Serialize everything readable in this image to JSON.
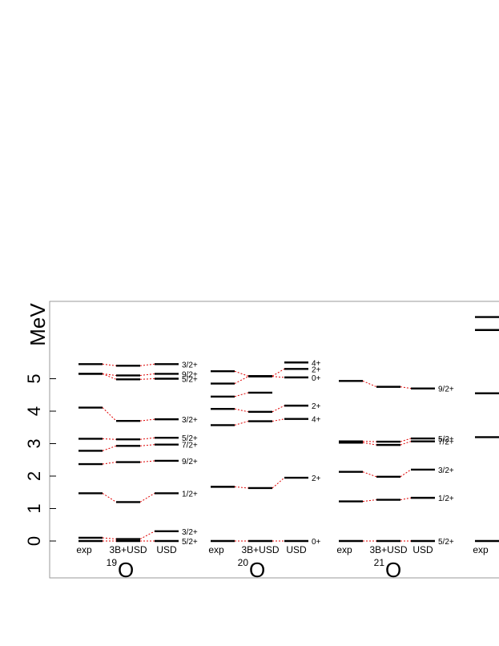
{
  "chart_data": {
    "type": "level-scheme",
    "ylabel": "MeV",
    "ylim": [
      0,
      5.7
    ],
    "yticks": [
      0,
      1,
      2,
      3,
      4,
      5
    ],
    "grid": false,
    "column_labels": [
      "exp",
      "3B+USD",
      "USD"
    ],
    "nuclei": [
      {
        "mass": "19",
        "symbol": "O",
        "levels": [
          {
            "spin": "5/2+",
            "exp": 0.0,
            "3B+USD": 0.0,
            "USD": 0.0
          },
          {
            "spin": "3/2+",
            "exp": 0.1,
            "3B+USD": 0.06,
            "USD": 0.3
          },
          {
            "spin": "1/2+",
            "exp": 1.47,
            "3B+USD": 1.2,
            "USD": 1.47
          },
          {
            "spin": "9/2+",
            "exp": 2.37,
            "3B+USD": 2.43,
            "USD": 2.47
          },
          {
            "spin": "7/2+",
            "exp": 2.78,
            "3B+USD": 2.93,
            "USD": 2.97
          },
          {
            "spin": "5/2+",
            "exp": 3.15,
            "3B+USD": 3.13,
            "USD": 3.18
          },
          {
            "spin": "3/2+",
            "exp": 4.11,
            "3B+USD": 3.7,
            "USD": 3.75
          },
          {
            "spin": "5/2+",
            "exp": 5.15,
            "3B+USD": 4.98,
            "USD": 5.0
          },
          {
            "spin": "9/2+",
            "exp": 5.15,
            "3B+USD": 5.1,
            "USD": 5.15
          },
          {
            "spin": "3/2+",
            "exp": 5.45,
            "3B+USD": 5.4,
            "USD": 5.45
          }
        ]
      },
      {
        "mass": "20",
        "symbol": "O",
        "levels": [
          {
            "spin": "0+",
            "exp": 0.0,
            "3B+USD": 0.0,
            "USD": 0.0
          },
          {
            "spin": "2+",
            "exp": 1.67,
            "3B+USD": 1.63,
            "USD": 1.95
          },
          {
            "spin": "4+",
            "exp": 3.57,
            "3B+USD": 3.69,
            "USD": 3.76
          },
          {
            "spin": "2+",
            "exp": 4.07,
            "3B+USD": 3.98,
            "USD": 4.17
          },
          {
            "spin": "",
            "exp": 4.45,
            "3B+USD": 4.57,
            "USD": null
          },
          {
            "spin": "0+",
            "exp": 4.85,
            "3B+USD": 5.07,
            "USD": 5.04
          },
          {
            "spin": "2+",
            "exp": 5.23,
            "3B+USD": 5.08,
            "USD": 5.3
          },
          {
            "spin": "4+",
            "exp": null,
            "3B+USD": null,
            "USD": 5.5
          }
        ]
      },
      {
        "mass": "21",
        "symbol": "O",
        "levels": [
          {
            "spin": "5/2+",
            "exp": 0.0,
            "3B+USD": 0.0,
            "USD": 0.0
          },
          {
            "spin": "1/2+",
            "exp": 1.22,
            "3B+USD": 1.27,
            "USD": 1.33
          },
          {
            "spin": "3/2+",
            "exp": 2.13,
            "3B+USD": 1.98,
            "USD": 2.2
          },
          {
            "spin": "7/2+",
            "exp": 3.03,
            "3B+USD": 2.96,
            "USD": 3.07
          },
          {
            "spin": "5/2+",
            "exp": 3.07,
            "3B+USD": 3.06,
            "USD": 3.16
          },
          {
            "spin": "9/2+",
            "exp": 4.93,
            "3B+USD": 4.75,
            "USD": 4.7
          }
        ]
      },
      {
        "mass": "",
        "symbol": "",
        "levels": [
          {
            "spin": "",
            "exp": 0.0,
            "3B+USD": null,
            "USD": null
          },
          {
            "spin": "",
            "exp": 3.2,
            "3B+USD": null,
            "USD": null
          },
          {
            "spin": "",
            "exp": 4.55,
            "3B+USD": null,
            "USD": null
          },
          {
            "spin": "",
            "exp": 6.5,
            "3B+USD": null,
            "USD": null
          },
          {
            "spin": "",
            "exp": 6.9,
            "3B+USD": null,
            "USD": null
          }
        ],
        "visible_columns": [
          "exp"
        ]
      }
    ],
    "colors": {
      "level": "#000000",
      "connector": "#e00000",
      "frame": "#9a9a9a"
    }
  }
}
